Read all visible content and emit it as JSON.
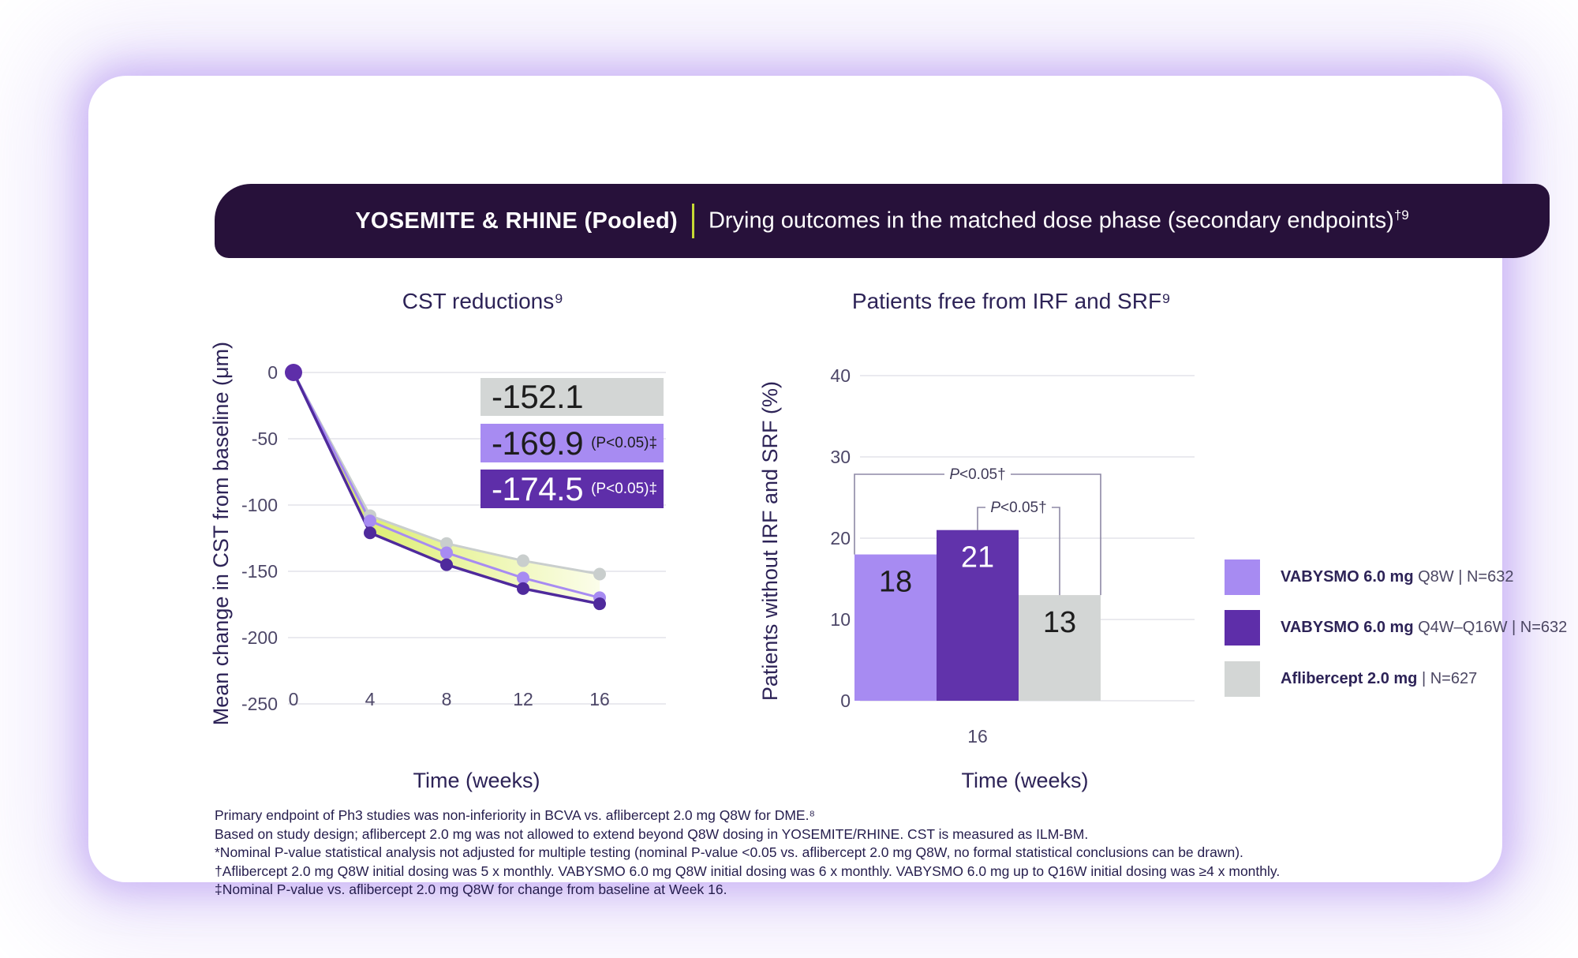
{
  "header": {
    "study": "YOSEMITE & RHINE (Pooled)",
    "title": "Drying outcomes in the matched dose phase (secondary endpoints)",
    "title_sup": "†9"
  },
  "colors": {
    "header_bg": "#27113a",
    "divider_accent": "#c6d934",
    "title_text": "#2d2357",
    "vabysmo_q8w": "#a78bf2",
    "vabysmo_q4w_q16w": "#5e2ea9",
    "aflibercept_gray": "#d3d6d5",
    "band_yellow": "#d5ea4d"
  },
  "chart_data": [
    {
      "type": "line",
      "title": "CST reductions⁹",
      "xlabel": "Time (weeks)",
      "ylabel": "Mean change in CST from baseline (μm)",
      "x": [
        0,
        4,
        8,
        12,
        16
      ],
      "xticks": [
        0,
        4,
        8,
        12,
        16
      ],
      "ylim": [
        -250,
        0
      ],
      "yticks": [
        0,
        -50,
        -100,
        -150,
        -200,
        -250
      ],
      "grid": true,
      "series": [
        {
          "name": "Aflibercept 2.0 mg",
          "values": [
            0,
            -108,
            -129,
            -142,
            -152.1
          ],
          "color": "#c9cecd",
          "label": "-152.1",
          "label_note": "",
          "label_bg": "#d3d6d5",
          "label_text": "#1d1d1d"
        },
        {
          "name": "VABYSMO 6.0 mg Q8W",
          "values": [
            0,
            -112,
            -136,
            -155,
            -169.9
          ],
          "color": "#a78bf2",
          "label": "-169.9",
          "label_note": "(P<0.05)‡",
          "label_bg": "#a78bf2",
          "label_text": "#1d1d1d"
        },
        {
          "name": "VABYSMO 6.0 mg Q4W–Q16W",
          "values": [
            0,
            -121,
            -145,
            -163,
            -174.5
          ],
          "color": "#4f2a9c",
          "label": "-174.5",
          "label_note": "(P<0.05)‡",
          "label_bg": "#5e2ea9",
          "label_text": "#ffffff"
        }
      ],
      "band": {
        "between": [
          "Aflibercept 2.0 mg",
          "VABYSMO 6.0 mg Q4W–Q16W"
        ],
        "color_start": "#d5ea4d",
        "color_end": "#fbfdea"
      }
    },
    {
      "type": "bar",
      "title": "Patients free from IRF and SRF⁹",
      "xlabel": "Time (weeks)",
      "ylabel": "Patients without IRF and SRF (%)",
      "categories": [
        "16"
      ],
      "ylim": [
        0,
        40
      ],
      "yticks": [
        0,
        10,
        20,
        30,
        40
      ],
      "grid": true,
      "series": [
        {
          "name": "VABYSMO 6.0 mg Q8W",
          "values": [
            18
          ],
          "color": "#a78bf2",
          "label_color": "#1d1d1d"
        },
        {
          "name": "VABYSMO 6.0 mg Q4W–Q16W",
          "values": [
            21
          ],
          "color": "#6133ab",
          "label_color": "#ffffff"
        },
        {
          "name": "Aflibercept 2.0 mg",
          "values": [
            13
          ],
          "color": "#d3d6d5",
          "label_color": "#1d1d1d"
        }
      ],
      "annotations": [
        {
          "label": "P<0.05†",
          "from": "VABYSMO 6.0 mg Q8W",
          "to": "Aflibercept 2.0 mg"
        },
        {
          "label": "P<0.05†",
          "from": "VABYSMO 6.0 mg Q4W–Q16W",
          "to": "Aflibercept 2.0 mg"
        }
      ],
      "legend_position": "right"
    }
  ],
  "legend": {
    "items": [
      {
        "bold": "VABYSMO 6.0 mg",
        "rest": " Q8W | N=632",
        "color": "#a78bf2"
      },
      {
        "bold": "VABYSMO 6.0 mg",
        "rest": " Q4W–Q16W | N=632",
        "color": "#5e2ea9"
      },
      {
        "bold": "Aflibercept 2.0 mg",
        "rest": " | N=627",
        "color": "#d3d6d5"
      }
    ]
  },
  "footnotes": [
    "Primary endpoint of Ph3 studies was non-inferiority in BCVA vs. aflibercept 2.0 mg Q8W for DME.⁸",
    "Based on study design; aflibercept 2.0 mg was not allowed to extend beyond Q8W dosing in YOSEMITE/RHINE. CST is measured as ILM-BM.",
    "*Nominal P-value statistical analysis not adjusted for multiple testing (nominal P-value <0.05 vs. aflibercept 2.0 mg Q8W, no formal statistical conclusions can be drawn).",
    "†Aflibercept 2.0 mg Q8W initial dosing was 5 x monthly. VABYSMO 6.0 mg Q8W initial dosing was 6 x monthly. VABYSMO 6.0 mg up to Q16W initial dosing was ≥4 x monthly.",
    "‡Nominal P-value vs. aflibercept 2.0 mg Q8W for change from baseline at Week 16."
  ]
}
